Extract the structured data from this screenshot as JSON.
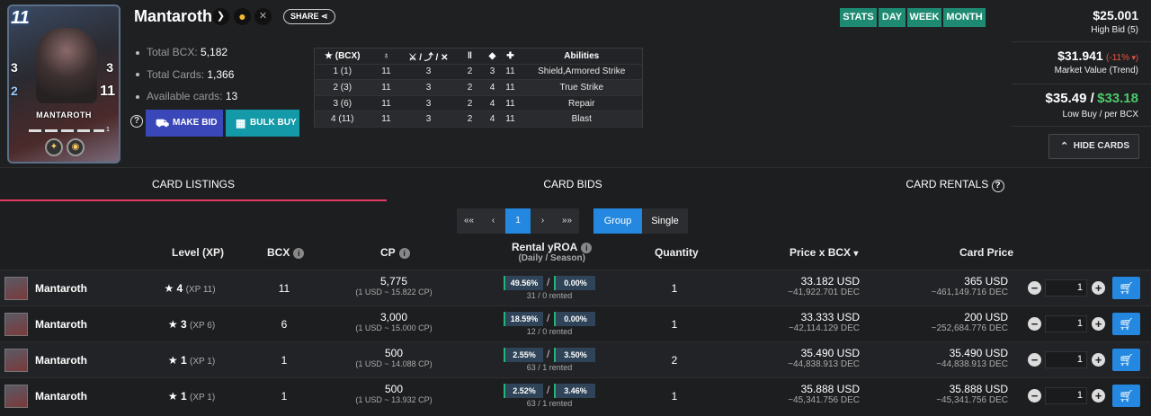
{
  "card": {
    "name": "Mantaroth",
    "image_label": "MANTAROTH",
    "mana": "11",
    "armor": "3",
    "melee": "3",
    "speed": "2",
    "health": "11",
    "level_badge": "1"
  },
  "share_label": "SHARE",
  "stats": {
    "total_bcx_label": "Total BCX:",
    "total_bcx": "5,182",
    "total_cards_label": "Total Cards:",
    "total_cards": "1,366",
    "available_label": "Available cards:",
    "available": "13"
  },
  "buttons": {
    "make_bid": "MAKE BID",
    "bulk_buy": "BULK BUY",
    "hide_cards": "HIDE CARDS"
  },
  "abilities_table": {
    "headers": [
      "(BCX)",
      "",
      "",
      "",
      "",
      "",
      "Abilities"
    ],
    "rows": [
      [
        "1 (1)",
        "11",
        "3",
        "2",
        "3",
        "11",
        "Shield,Armored Strike"
      ],
      [
        "2 (3)",
        "11",
        "3",
        "2",
        "4",
        "11",
        "True Strike"
      ],
      [
        "3 (6)",
        "11",
        "3",
        "2",
        "4",
        "11",
        "Repair"
      ],
      [
        "4 (11)",
        "11",
        "3",
        "2",
        "4",
        "11",
        "Blast"
      ]
    ]
  },
  "periods": [
    "STATS",
    "DAY",
    "WEEK",
    "MONTH"
  ],
  "market": {
    "high_bid": "$25.001",
    "high_bid_label": "High Bid (5)",
    "market_value": "$31.941",
    "market_change": "(-11%",
    "market_label": "Market Value (Trend)",
    "low_buy": "$35.49 /",
    "per_bcx": "$33.18",
    "low_label": "Low Buy / per BCX"
  },
  "tabs": [
    "CARD LISTINGS",
    "CARD BIDS",
    "CARD RENTALS"
  ],
  "pagination": {
    "first": "««",
    "prev": "‹",
    "page": "1",
    "next": "›",
    "last": "»»"
  },
  "view_toggle": {
    "group": "Group",
    "single": "Single"
  },
  "columns": {
    "level": "Level (XP)",
    "bcx": "BCX",
    "cp": "CP",
    "roa": "Rental yROA",
    "roa_sub": "(Daily / Season)",
    "quantity": "Quantity",
    "price_bcx": "Price x BCX",
    "card_price": "Card Price"
  },
  "listings": [
    {
      "name": "Mantaroth",
      "level": "4",
      "xp": "(XP 11)",
      "bcx": "11",
      "cp": "5,775",
      "cp_rate": "(1 USD ~ 15.822 CP)",
      "roa_daily": "49.56%",
      "roa_season": "0.00%",
      "rented": "31 / 0 rented",
      "quantity": "1",
      "price": "33.182 USD",
      "price_dec": "~41,922.701 DEC",
      "card_price": "365 USD",
      "card_price_dec": "~461,149.716 DEC",
      "qty_input": "1"
    },
    {
      "name": "Mantaroth",
      "level": "3",
      "xp": "(XP 6)",
      "bcx": "6",
      "cp": "3,000",
      "cp_rate": "(1 USD ~ 15.000 CP)",
      "roa_daily": "18.59%",
      "roa_season": "0.00%",
      "rented": "12 / 0 rented",
      "quantity": "1",
      "price": "33.333 USD",
      "price_dec": "~42,114.129 DEC",
      "card_price": "200 USD",
      "card_price_dec": "~252,684.776 DEC",
      "qty_input": "1"
    },
    {
      "name": "Mantaroth",
      "level": "1",
      "xp": "(XP 1)",
      "bcx": "1",
      "cp": "500",
      "cp_rate": "(1 USD ~ 14.088 CP)",
      "roa_daily": "2.55%",
      "roa_season": "3.50%",
      "rented": "63 / 1 rented",
      "quantity": "2",
      "price": "35.490 USD",
      "price_dec": "~44,838.913 DEC",
      "card_price": "35.490 USD",
      "card_price_dec": "~44,838.913 DEC",
      "qty_input": "1"
    },
    {
      "name": "Mantaroth",
      "level": "1",
      "xp": "(XP 1)",
      "bcx": "1",
      "cp": "500",
      "cp_rate": "(1 USD ~ 13.932 CP)",
      "roa_daily": "2.52%",
      "roa_season": "3.46%",
      "rented": "63 / 1 rented",
      "quantity": "1",
      "price": "35.888 USD",
      "price_dec": "~45,341.756 DEC",
      "card_price": "35.888 USD",
      "card_price_dec": "~45,341.756 DEC",
      "qty_input": "1"
    }
  ]
}
